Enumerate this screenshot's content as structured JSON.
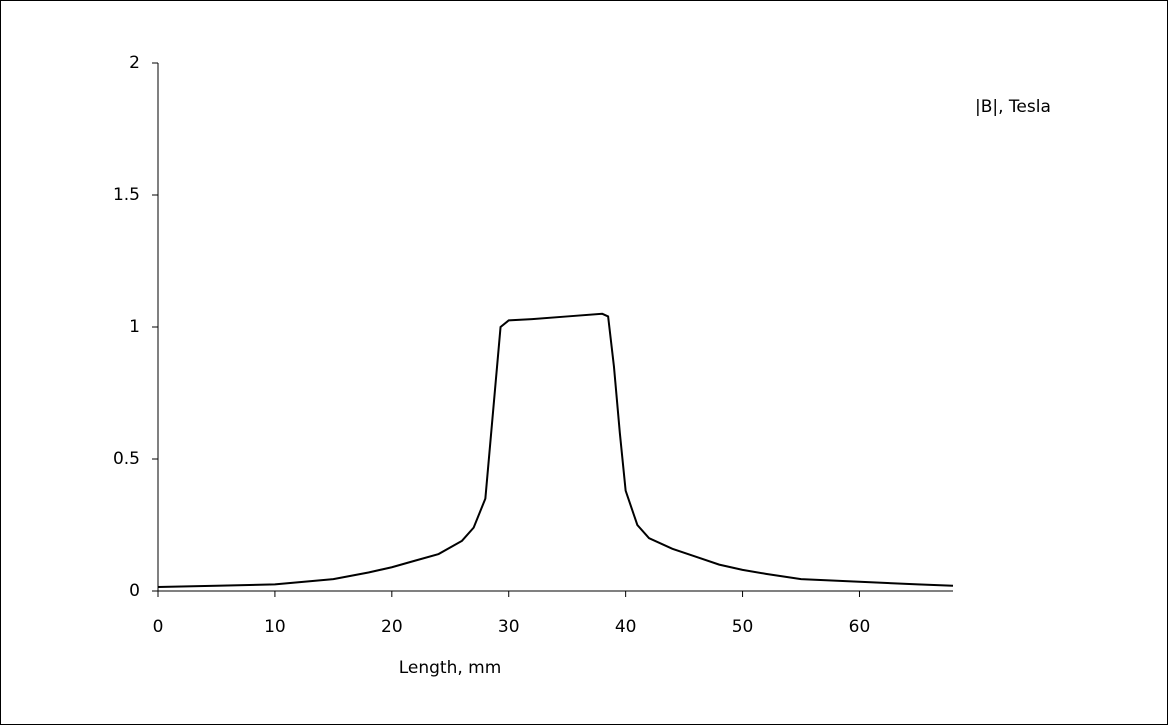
{
  "chart_data": {
    "type": "line",
    "x_label": "Length, mm",
    "x": [
      0,
      5,
      10,
      15,
      18,
      20,
      22,
      24,
      26,
      27,
      28,
      28.5,
      29,
      29.3,
      30,
      32,
      35,
      38,
      38.5,
      39,
      39.5,
      40,
      41,
      42,
      44,
      46,
      48,
      50,
      52,
      55,
      60,
      65,
      68
    ],
    "series": [
      {
        "name": "|B|, Tesla",
        "color": "#000000",
        "values": [
          0.015,
          0.02,
          0.025,
          0.045,
          0.07,
          0.09,
          0.115,
          0.14,
          0.19,
          0.24,
          0.35,
          0.6,
          0.85,
          1.0,
          1.025,
          1.03,
          1.04,
          1.05,
          1.04,
          0.85,
          0.6,
          0.38,
          0.25,
          0.2,
          0.16,
          0.13,
          0.1,
          0.08,
          0.065,
          0.045,
          0.035,
          0.025,
          0.02
        ]
      }
    ],
    "xlim": [
      0,
      68
    ],
    "xticks": [
      0,
      10,
      20,
      30,
      40,
      50,
      60
    ],
    "ylim": [
      0,
      2
    ],
    "yticks": [
      0,
      {
        "value": 0.5,
        "label": "0.5"
      },
      1,
      {
        "value": 1.5,
        "label": "1.5"
      },
      2
    ],
    "grid": false
  }
}
